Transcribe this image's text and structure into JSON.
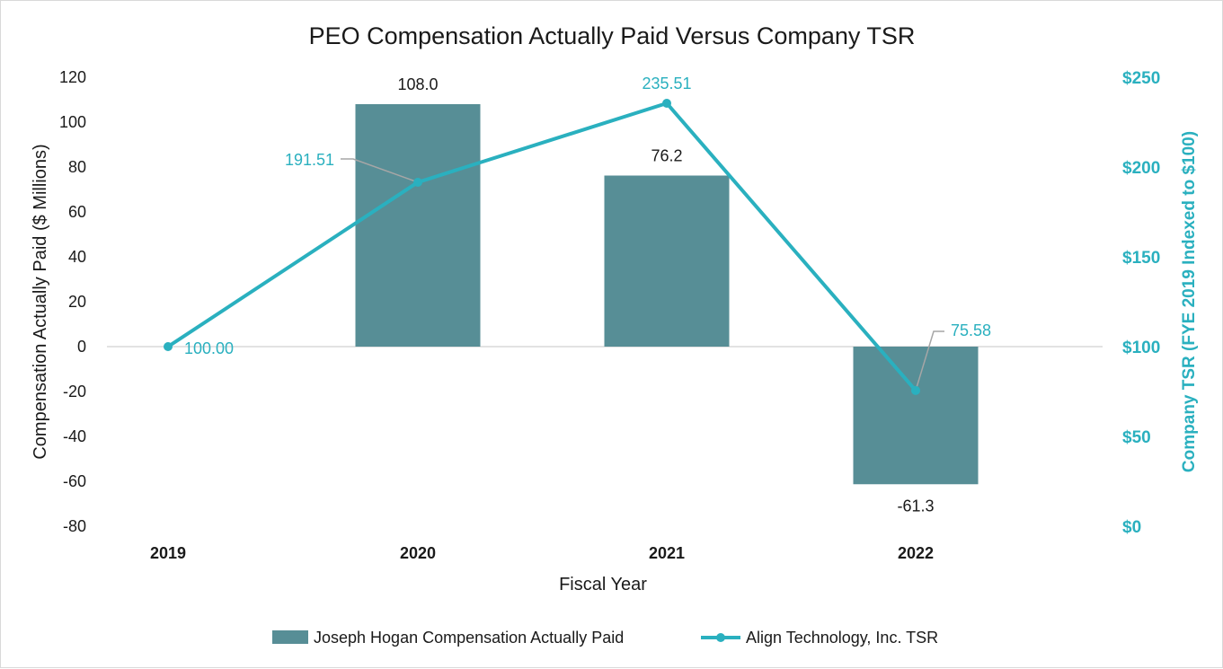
{
  "chart_data": {
    "type": "bar",
    "title": "PEO Compensation Actually Paid Versus Company TSR",
    "xlabel": "Fiscal Year",
    "ylabel": "Compensation Actually Paid ($ Millions)",
    "y2label": "Company TSR (FYE 2019 Indexed to $100)",
    "categories": [
      "2019",
      "2020",
      "2021",
      "2022"
    ],
    "ylim": [
      -80,
      120
    ],
    "yticks": [
      120,
      100,
      80,
      60,
      40,
      20,
      0,
      -20,
      -40,
      -60,
      -80
    ],
    "y2lim": [
      0,
      250
    ],
    "y2ticks": [
      "$250",
      "$200",
      "$150",
      "$100",
      "$50",
      "$0"
    ],
    "y2tick_values": [
      250,
      200,
      150,
      100,
      50,
      0
    ],
    "grid": false,
    "legend_position": "bottom",
    "series": [
      {
        "name": "Joseph Hogan Compensation Actually Paid",
        "type": "bar",
        "axis": "left",
        "color": "#578e96",
        "values": [
          null,
          108.0,
          76.2,
          -61.3
        ],
        "labels": [
          "",
          "108.0",
          "76.2",
          "-61.3"
        ]
      },
      {
        "name": "Align Technology, Inc. TSR",
        "type": "line",
        "axis": "right",
        "color": "#2ab0bf",
        "values": [
          100.0,
          191.51,
          235.51,
          75.58
        ],
        "labels": [
          "100.00",
          "191.51",
          "235.51",
          "75.58"
        ]
      }
    ]
  }
}
